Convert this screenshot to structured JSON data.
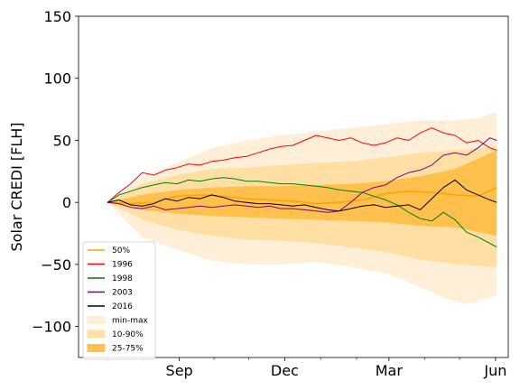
{
  "chart_data": {
    "type": "line",
    "title": "",
    "xlabel": "",
    "ylabel": "Solar CREDI [FLH]",
    "ylim": [
      -125,
      150
    ],
    "xlim_days": [
      -25,
      346
    ],
    "yticks": [
      -100,
      -50,
      0,
      50,
      100,
      150
    ],
    "xticks": [
      {
        "label": "Sep",
        "day": 62
      },
      {
        "label": "Dec",
        "day": 153
      },
      {
        "label": "Mar",
        "day": 243
      },
      {
        "label": "Jun",
        "day": 335
      }
    ],
    "x_minor_ticks_days": [
      0,
      31,
      92,
      122,
      184,
      215,
      274,
      304
    ],
    "grid": false,
    "legend_position": "lower-left",
    "bands": [
      {
        "name": "min-max",
        "color": "#ffefd9",
        "upper": [
          [
            0,
            0
          ],
          [
            30,
            20
          ],
          [
            60,
            32
          ],
          [
            90,
            44
          ],
          [
            120,
            50
          ],
          [
            150,
            54
          ],
          [
            180,
            57
          ],
          [
            210,
            60
          ],
          [
            240,
            63
          ],
          [
            270,
            66
          ],
          [
            300,
            66
          ],
          [
            320,
            68
          ],
          [
            336,
            73
          ]
        ],
        "lower": [
          [
            0,
            0
          ],
          [
            30,
            -28
          ],
          [
            60,
            -38
          ],
          [
            90,
            -47
          ],
          [
            120,
            -50
          ],
          [
            150,
            -50
          ],
          [
            180,
            -48
          ],
          [
            210,
            -52
          ],
          [
            240,
            -57
          ],
          [
            270,
            -68
          ],
          [
            290,
            -77
          ],
          [
            310,
            -82
          ],
          [
            336,
            -75
          ]
        ]
      },
      {
        "name": "10-90%",
        "color": "#ffdfa3",
        "upper": [
          [
            0,
            0
          ],
          [
            30,
            15
          ],
          [
            60,
            22
          ],
          [
            90,
            27
          ],
          [
            120,
            28
          ],
          [
            150,
            30
          ],
          [
            180,
            32
          ],
          [
            210,
            33
          ],
          [
            240,
            36
          ],
          [
            270,
            40
          ],
          [
            300,
            42
          ],
          [
            336,
            45
          ]
        ],
        "lower": [
          [
            0,
            0
          ],
          [
            30,
            -14
          ],
          [
            60,
            -22
          ],
          [
            90,
            -27
          ],
          [
            120,
            -30
          ],
          [
            150,
            -31
          ],
          [
            180,
            -33
          ],
          [
            210,
            -36
          ],
          [
            240,
            -40
          ],
          [
            270,
            -46
          ],
          [
            300,
            -50
          ],
          [
            336,
            -52
          ]
        ]
      },
      {
        "name": "25-75%",
        "color": "#ffc04d",
        "upper": [
          [
            0,
            0
          ],
          [
            30,
            6
          ],
          [
            60,
            10
          ],
          [
            90,
            12
          ],
          [
            120,
            13
          ],
          [
            150,
            13
          ],
          [
            180,
            14
          ],
          [
            210,
            15
          ],
          [
            240,
            17
          ],
          [
            270,
            21
          ],
          [
            300,
            27
          ],
          [
            336,
            42
          ]
        ],
        "lower": [
          [
            0,
            0
          ],
          [
            30,
            -6
          ],
          [
            60,
            -9
          ],
          [
            90,
            -11
          ],
          [
            120,
            -12
          ],
          [
            150,
            -13
          ],
          [
            180,
            -14
          ],
          [
            210,
            -15
          ],
          [
            240,
            -16
          ],
          [
            270,
            -19
          ],
          [
            300,
            -20
          ],
          [
            336,
            -27
          ]
        ]
      }
    ],
    "series": [
      {
        "name": "50%",
        "color": "#ffa500",
        "width": 1.6,
        "points": [
          [
            0,
            0
          ],
          [
            20,
            -1
          ],
          [
            40,
            0
          ],
          [
            60,
            5
          ],
          [
            80,
            6
          ],
          [
            100,
            5
          ],
          [
            120,
            3
          ],
          [
            140,
            2
          ],
          [
            160,
            1
          ],
          [
            180,
            -1
          ],
          [
            200,
            0
          ],
          [
            220,
            2
          ],
          [
            240,
            7
          ],
          [
            260,
            9
          ],
          [
            280,
            8
          ],
          [
            300,
            6
          ],
          [
            320,
            5
          ],
          [
            336,
            12
          ]
        ]
      },
      {
        "name": "1996",
        "color": "#ff0000",
        "width": 1.0,
        "points": [
          [
            0,
            0
          ],
          [
            10,
            8
          ],
          [
            20,
            15
          ],
          [
            30,
            24
          ],
          [
            40,
            22
          ],
          [
            50,
            26
          ],
          [
            60,
            28
          ],
          [
            70,
            31
          ],
          [
            80,
            30
          ],
          [
            90,
            33
          ],
          [
            100,
            34
          ],
          [
            110,
            36
          ],
          [
            120,
            37
          ],
          [
            130,
            40
          ],
          [
            140,
            43
          ],
          [
            150,
            45
          ],
          [
            160,
            46
          ],
          [
            170,
            50
          ],
          [
            180,
            54
          ],
          [
            190,
            52
          ],
          [
            200,
            50
          ],
          [
            210,
            52
          ],
          [
            220,
            48
          ],
          [
            230,
            46
          ],
          [
            240,
            48
          ],
          [
            250,
            52
          ],
          [
            260,
            50
          ],
          [
            270,
            56
          ],
          [
            280,
            60
          ],
          [
            290,
            56
          ],
          [
            300,
            54
          ],
          [
            310,
            48
          ],
          [
            320,
            50
          ],
          [
            330,
            44
          ],
          [
            336,
            42
          ]
        ]
      },
      {
        "name": "1998",
        "color": "#008000",
        "width": 1.0,
        "points": [
          [
            0,
            0
          ],
          [
            10,
            6
          ],
          [
            20,
            9
          ],
          [
            30,
            12
          ],
          [
            40,
            14
          ],
          [
            50,
            16
          ],
          [
            60,
            15
          ],
          [
            70,
            18
          ],
          [
            80,
            17
          ],
          [
            90,
            19
          ],
          [
            100,
            20
          ],
          [
            110,
            19
          ],
          [
            120,
            17
          ],
          [
            130,
            17
          ],
          [
            140,
            16
          ],
          [
            150,
            15
          ],
          [
            160,
            15
          ],
          [
            170,
            14
          ],
          [
            180,
            13
          ],
          [
            190,
            12
          ],
          [
            200,
            10
          ],
          [
            210,
            9
          ],
          [
            220,
            8
          ],
          [
            230,
            5
          ],
          [
            240,
            2
          ],
          [
            250,
            -2
          ],
          [
            260,
            -8
          ],
          [
            270,
            -13
          ],
          [
            280,
            -15
          ],
          [
            290,
            -8
          ],
          [
            300,
            -14
          ],
          [
            310,
            -24
          ],
          [
            320,
            -28
          ],
          [
            330,
            -33
          ],
          [
            336,
            -36
          ]
        ]
      },
      {
        "name": "2003",
        "color": "#800080",
        "width": 1.0,
        "points": [
          [
            0,
            0
          ],
          [
            10,
            -1
          ],
          [
            20,
            -4
          ],
          [
            30,
            -5
          ],
          [
            40,
            -3
          ],
          [
            50,
            -6
          ],
          [
            60,
            -5
          ],
          [
            70,
            -4
          ],
          [
            80,
            -3
          ],
          [
            90,
            -4
          ],
          [
            100,
            -3
          ],
          [
            110,
            -2
          ],
          [
            120,
            -3
          ],
          [
            130,
            -4
          ],
          [
            140,
            -3
          ],
          [
            150,
            -5
          ],
          [
            160,
            -5
          ],
          [
            170,
            -6
          ],
          [
            180,
            -7
          ],
          [
            190,
            -8
          ],
          [
            200,
            -7
          ],
          [
            210,
            0
          ],
          [
            220,
            8
          ],
          [
            230,
            12
          ],
          [
            240,
            14
          ],
          [
            250,
            20
          ],
          [
            260,
            24
          ],
          [
            270,
            26
          ],
          [
            280,
            30
          ],
          [
            290,
            38
          ],
          [
            300,
            40
          ],
          [
            310,
            38
          ],
          [
            320,
            44
          ],
          [
            330,
            52
          ],
          [
            336,
            50
          ]
        ]
      },
      {
        "name": "2016",
        "color": "#000000",
        "width": 1.0,
        "points": [
          [
            0,
            0
          ],
          [
            10,
            2
          ],
          [
            20,
            -2
          ],
          [
            30,
            -3
          ],
          [
            40,
            -1
          ],
          [
            50,
            3
          ],
          [
            60,
            1
          ],
          [
            70,
            4
          ],
          [
            80,
            3
          ],
          [
            90,
            6
          ],
          [
            100,
            4
          ],
          [
            110,
            1
          ],
          [
            120,
            0
          ],
          [
            130,
            -1
          ],
          [
            140,
            -1
          ],
          [
            150,
            -2
          ],
          [
            160,
            -3
          ],
          [
            170,
            -2
          ],
          [
            180,
            -4
          ],
          [
            190,
            -6
          ],
          [
            200,
            -7
          ],
          [
            210,
            -5
          ],
          [
            220,
            -3
          ],
          [
            230,
            -2
          ],
          [
            240,
            -4
          ],
          [
            250,
            -3
          ],
          [
            260,
            -2
          ],
          [
            270,
            -6
          ],
          [
            280,
            3
          ],
          [
            290,
            12
          ],
          [
            300,
            18
          ],
          [
            310,
            10
          ],
          [
            320,
            6
          ],
          [
            330,
            2
          ],
          [
            336,
            0
          ]
        ]
      }
    ]
  }
}
